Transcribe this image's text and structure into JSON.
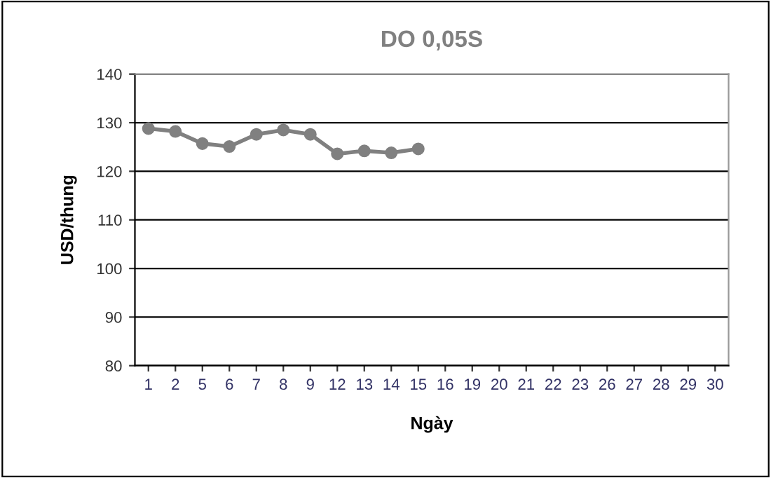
{
  "chart_data": {
    "type": "line",
    "title": "DO 0,05S",
    "xlabel": "Ngày",
    "ylabel": "USD/thung",
    "categories": [
      "1",
      "2",
      "5",
      "6",
      "7",
      "8",
      "9",
      "12",
      "13",
      "14",
      "15",
      "16",
      "19",
      "20",
      "21",
      "22",
      "23",
      "26",
      "27",
      "28",
      "29",
      "30"
    ],
    "series": [
      {
        "color": "#808080",
        "values": [
          128.8,
          128.2,
          125.7,
          125.1,
          127.6,
          128.5,
          127.6,
          123.6,
          124.2,
          123.8,
          124.6,
          null,
          null,
          null,
          null,
          null,
          null,
          null,
          null,
          null,
          null,
          null
        ]
      }
    ],
    "ylim": [
      80,
      140
    ],
    "yticks": [
      80,
      90,
      100,
      110,
      120,
      130,
      140
    ],
    "grid": "y",
    "marker": "circle",
    "line_style": "solid"
  }
}
